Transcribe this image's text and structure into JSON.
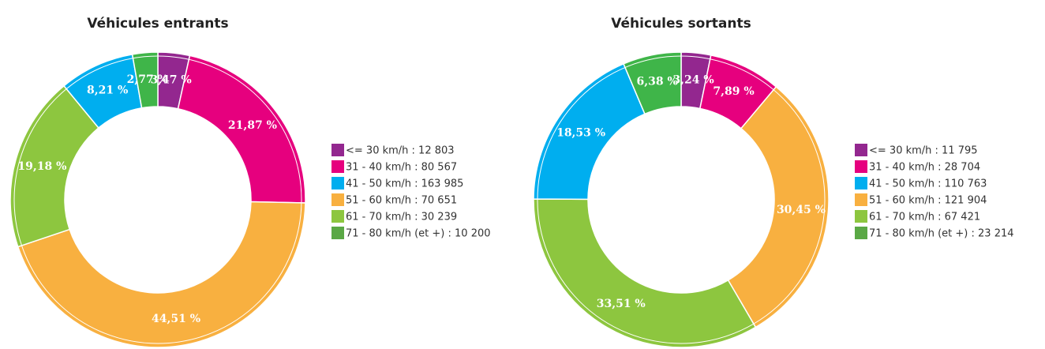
{
  "chart_data": [
    {
      "type": "pie",
      "donut": true,
      "title": "Véhicules entrants",
      "values": [
        3.47,
        21.87,
        44.51,
        19.18,
        8.21,
        2.77
      ],
      "value_labels": [
        "3,47 %",
        "21,87 %",
        "44,51 %",
        "19,18 %",
        "8,21 %",
        "2,77 %"
      ],
      "colors": [
        "#93278f",
        "#e6007e",
        "#f8b040",
        "#8dc63f",
        "#00aeef",
        "#3fb549"
      ],
      "legend": [
        "<= 30 km/h : 12 803",
        "31 - 40 km/h : 80 567",
        "41 - 50 km/h : 163 985",
        "51 - 60 km/h : 70 651",
        "61 - 70 km/h : 30 239",
        "71 - 80 km/h (et +) : 10 200"
      ],
      "legend_colors": [
        "#93278f",
        "#e6007e",
        "#00aeef",
        "#f8b040",
        "#8dc63f",
        "#5aa845"
      ]
    },
    {
      "type": "pie",
      "donut": true,
      "title": "Véhicules sortants",
      "values": [
        3.24,
        7.89,
        30.45,
        33.51,
        18.53,
        6.38
      ],
      "value_labels": [
        "3,24 %",
        "7,89 %",
        "30,45 %",
        "33,51 %",
        "18,53 %",
        "6,38 %"
      ],
      "colors": [
        "#93278f",
        "#e6007e",
        "#f8b040",
        "#8dc63f",
        "#00aeef",
        "#3fb549"
      ],
      "legend": [
        "<= 30 km/h : 11 795",
        "31 - 40 km/h : 28 704",
        "41 - 50 km/h : 110 763",
        "51 - 60 km/h : 121 904",
        "61 - 70 km/h : 67 421",
        "71 - 80 km/h (et +) : 23 214"
      ],
      "legend_colors": [
        "#93278f",
        "#e6007e",
        "#00aeef",
        "#f8b040",
        "#8dc63f",
        "#5aa845"
      ]
    }
  ]
}
